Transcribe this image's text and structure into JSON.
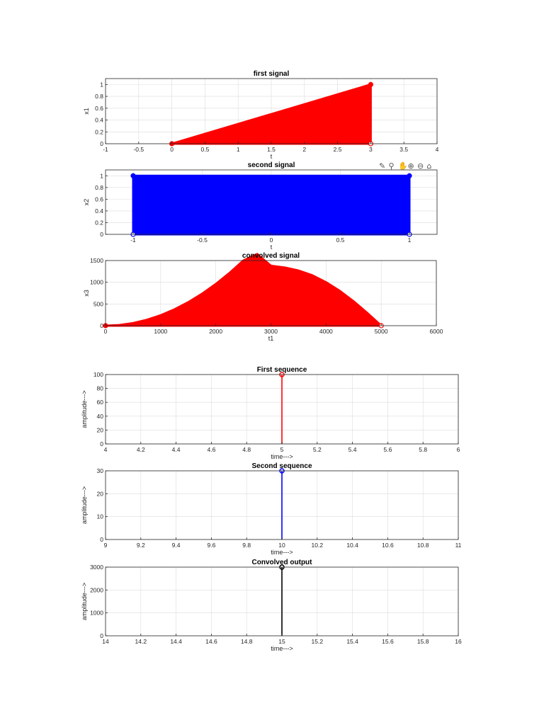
{
  "toolbar": {
    "icons": [
      "brush-icon",
      "datatip-icon",
      "pan-icon",
      "zoom-in-icon",
      "zoom-out-icon",
      "home-icon"
    ],
    "glyphs": [
      "✎",
      "⚲",
      "✋",
      "⊕",
      "⊖",
      "⌂"
    ]
  },
  "chart_data": [
    {
      "id": "first-signal",
      "type": "area",
      "title": "first signal",
      "xlabel": "t",
      "ylabel": "x1",
      "xlim": [
        -1,
        4
      ],
      "ylim": [
        0,
        1.1
      ],
      "xticks": [
        -1,
        -0.5,
        0,
        0.5,
        1,
        1.5,
        2,
        2.5,
        3,
        3.5,
        4
      ],
      "xtick_labels": [
        "-1",
        "-0.5",
        "0",
        "0.5",
        "1",
        "1.5",
        "2",
        "2.5",
        "3",
        "3.5",
        "4"
      ],
      "yticks": [
        0,
        0.2,
        0.4,
        0.6,
        0.8,
        1
      ],
      "ytick_labels": [
        "0",
        "0.2",
        "0.4",
        "0.6",
        "0.8",
        "1"
      ],
      "grid": true,
      "color": "#ff0000",
      "series": [
        {
          "x": [
            0,
            3
          ],
          "y": [
            0,
            1
          ]
        }
      ],
      "markers": [
        {
          "x": 0,
          "y": 0
        },
        {
          "x": 3,
          "y": 1
        },
        {
          "x": 3,
          "y": 0
        }
      ]
    },
    {
      "id": "second-signal",
      "type": "area",
      "title": "second signal",
      "xlabel": "t",
      "ylabel": "x2",
      "xlim": [
        -1.2,
        1.2
      ],
      "ylim": [
        0,
        1.1
      ],
      "xticks": [
        -1,
        -0.5,
        0,
        0.5,
        1
      ],
      "xtick_labels": [
        "-1",
        "-0.5",
        "0",
        "0.5",
        "1"
      ],
      "yticks": [
        0,
        0.2,
        0.4,
        0.6,
        0.8,
        1
      ],
      "ytick_labels": [
        "0",
        "0.2",
        "0.4",
        "0.6",
        "0.8",
        "1"
      ],
      "grid": true,
      "color": "#0000ff",
      "series": [
        {
          "x": [
            -1,
            1
          ],
          "y": [
            1,
            1
          ]
        }
      ],
      "markers": [
        {
          "x": -1,
          "y": 1
        },
        {
          "x": 1,
          "y": 1
        },
        {
          "x": -1,
          "y": 0
        },
        {
          "x": 1,
          "y": 0
        }
      ]
    },
    {
      "id": "convolved-signal",
      "type": "area",
      "title": "convolved signal",
      "xlabel": "t1",
      "ylabel": "x3",
      "xlim": [
        0,
        6000
      ],
      "ylim": [
        0,
        1500
      ],
      "xticks": [
        0,
        1000,
        2000,
        3000,
        4000,
        5000,
        6000
      ],
      "xtick_labels": [
        "0",
        "1000",
        "2000",
        "3000",
        "4000",
        "5000",
        "6000"
      ],
      "yticks": [
        0,
        500,
        1000,
        1500
      ],
      "ytick_labels": [
        "0",
        "500",
        "1000",
        "1500"
      ],
      "grid": true,
      "color": "#ff0000",
      "series": [
        {
          "x": [
            0,
            250,
            500,
            750,
            1000,
            1250,
            1500,
            1750,
            2000,
            2250,
            2500,
            2750,
            3000,
            3250,
            3500,
            3750,
            4000,
            4250,
            4500,
            4750,
            5000
          ],
          "y": [
            0,
            15,
            60,
            135,
            240,
            375,
            540,
            735,
            960,
            1215,
            1500,
            1650,
            1380,
            1340,
            1270,
            1160,
            1000,
            800,
            560,
            290,
            0
          ]
        }
      ],
      "markers": [
        {
          "x": 0,
          "y": 0
        },
        {
          "x": 5000,
          "y": 0
        }
      ]
    },
    {
      "id": "first-sequence",
      "type": "stem",
      "title": "First sequence",
      "xlabel": "time--->",
      "ylabel": "amplitude--->",
      "xlim": [
        4,
        6
      ],
      "ylim": [
        0,
        100
      ],
      "xticks": [
        4,
        4.2,
        4.4,
        4.6,
        4.8,
        5,
        5.2,
        5.4,
        5.6,
        5.8,
        6
      ],
      "xtick_labels": [
        "4",
        "4.2",
        "4.4",
        "4.6",
        "4.8",
        "5",
        "5.2",
        "5.4",
        "5.6",
        "5.8",
        "6"
      ],
      "yticks": [
        0,
        20,
        40,
        60,
        80,
        100
      ],
      "ytick_labels": [
        "0",
        "20",
        "40",
        "60",
        "80",
        "100"
      ],
      "grid": true,
      "color": "#ff0000",
      "series": [
        {
          "x": [
            5
          ],
          "y": [
            100
          ]
        }
      ]
    },
    {
      "id": "second-sequence",
      "type": "stem",
      "title": "Second sequence",
      "xlabel": "time--->",
      "ylabel": "amplitude--->",
      "xlim": [
        9,
        11
      ],
      "ylim": [
        0,
        30
      ],
      "xticks": [
        9,
        9.2,
        9.4,
        9.6,
        9.8,
        10,
        10.2,
        10.4,
        10.6,
        10.8,
        11
      ],
      "xtick_labels": [
        "9",
        "9.2",
        "9.4",
        "9.6",
        "9.8",
        "10",
        "10.2",
        "10.4",
        "10.6",
        "10.8",
        "11"
      ],
      "yticks": [
        0,
        10,
        20,
        30
      ],
      "ytick_labels": [
        "0",
        "10",
        "20",
        "30"
      ],
      "grid": true,
      "color": "#0000ff",
      "series": [
        {
          "x": [
            10
          ],
          "y": [
            30
          ]
        }
      ]
    },
    {
      "id": "convolved-output",
      "type": "stem",
      "title": "Convolved output",
      "xlabel": "time--->",
      "ylabel": "amplitude--->",
      "xlim": [
        14,
        16
      ],
      "ylim": [
        0,
        3000
      ],
      "xticks": [
        14,
        14.2,
        14.4,
        14.6,
        14.8,
        15,
        15.2,
        15.4,
        15.6,
        15.8,
        16
      ],
      "xtick_labels": [
        "14",
        "14.2",
        "14.4",
        "14.6",
        "14.8",
        "15",
        "15.2",
        "15.4",
        "15.6",
        "15.8",
        "16"
      ],
      "yticks": [
        0,
        1000,
        2000,
        3000
      ],
      "ytick_labels": [
        "0",
        "1000",
        "2000",
        "3000"
      ],
      "grid": true,
      "color": "#000000",
      "series": [
        {
          "x": [
            15
          ],
          "y": [
            3000
          ]
        }
      ]
    }
  ]
}
